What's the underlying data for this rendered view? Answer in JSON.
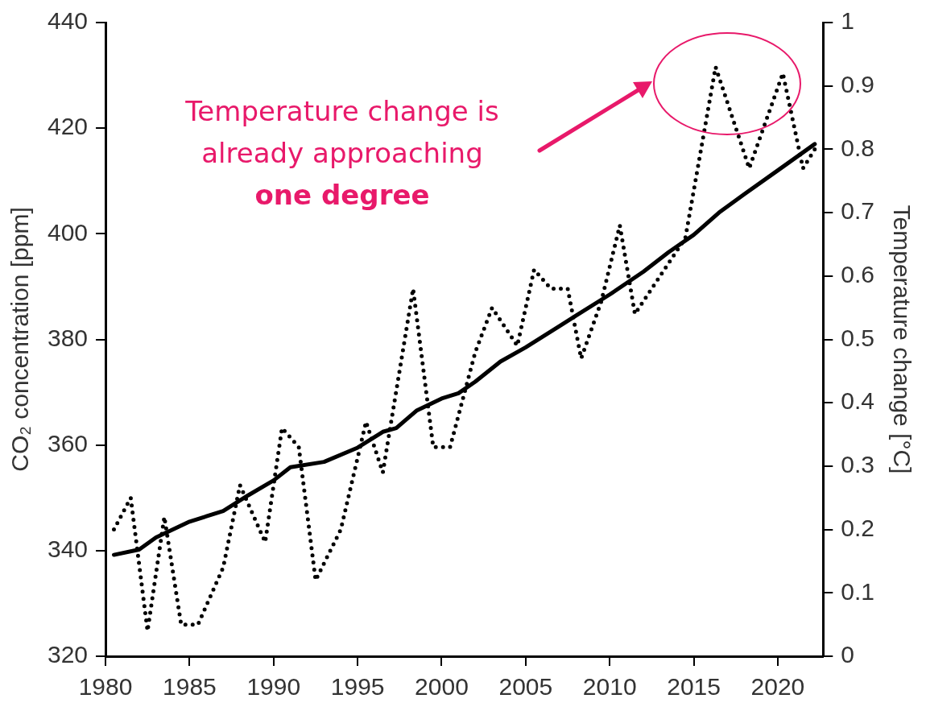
{
  "chart_data": {
    "type": "line",
    "ylabel": "CO₂ concentration [ppm]",
    "y2label": "Temperature change [°C]",
    "annotations": [
      "Temperature change is already approaching",
      "one degree"
    ],
    "xlim": [
      1980,
      2022.7
    ],
    "xticks": [
      1980,
      1985,
      1990,
      1995,
      2000,
      2005,
      2010,
      2015,
      2020
    ],
    "ylim": [
      320,
      440
    ],
    "yticks": [
      320,
      340,
      360,
      380,
      400,
      420,
      440
    ],
    "y2lim": [
      0,
      1
    ],
    "y2ticks": [
      0,
      0.1,
      0.2,
      0.3,
      0.4,
      0.5,
      0.6,
      0.7,
      0.8,
      0.9,
      1
    ],
    "marker": "none",
    "series": [
      {
        "color": "#000000",
        "line_style": "solid",
        "x": [
          1980.5,
          1982,
          1983,
          1985,
          1987,
          1988.5,
          1990,
          1991,
          1993,
          1995,
          1996.5,
          1997.3,
          1998.5,
          2000,
          2001,
          2002,
          2003.5,
          2005,
          2007,
          2008,
          2010,
          2012,
          2013.5,
          2015,
          2016.5,
          2018,
          2020,
          2022.2
        ],
        "values": [
          339.2,
          340.2,
          342.5,
          345.5,
          347.5,
          350.5,
          353.3,
          355.8,
          356.8,
          359.5,
          362.5,
          363.2,
          366.5,
          368.8,
          369.8,
          372,
          375.8,
          378.5,
          382.5,
          384.5,
          388.5,
          392.8,
          396.5,
          399.8,
          404,
          407.5,
          412,
          417
        ]
      },
      {
        "color": "#000000",
        "line_style": "dotted",
        "axis": "y2",
        "x": [
          1980.5,
          1981.5,
          1982.5,
          1983.5,
          1984.5,
          1985.5,
          1987,
          1988,
          1989.5,
          1990.5,
          1991.5,
          1992.5,
          1994,
          1995.5,
          1996.5,
          1998.3,
          1999.5,
          2000.5,
          2002,
          2003,
          2004.5,
          2005.5,
          2006.5,
          2007.5,
          2008.3,
          2009.5,
          2010.6,
          2011.5,
          2013,
          2014.5,
          2016.3,
          2018.3,
          2020.3,
          2021.5,
          2022.2
        ],
        "values": [
          0.2,
          0.25,
          0.04,
          0.22,
          0.05,
          0.05,
          0.14,
          0.27,
          0.18,
          0.36,
          0.33,
          0.12,
          0.2,
          0.37,
          0.29,
          0.58,
          0.33,
          0.33,
          0.48,
          0.55,
          0.49,
          0.61,
          0.58,
          0.58,
          0.47,
          0.56,
          0.68,
          0.54,
          0.6,
          0.66,
          0.93,
          0.77,
          0.92,
          0.77,
          0.8
        ]
      }
    ]
  }
}
